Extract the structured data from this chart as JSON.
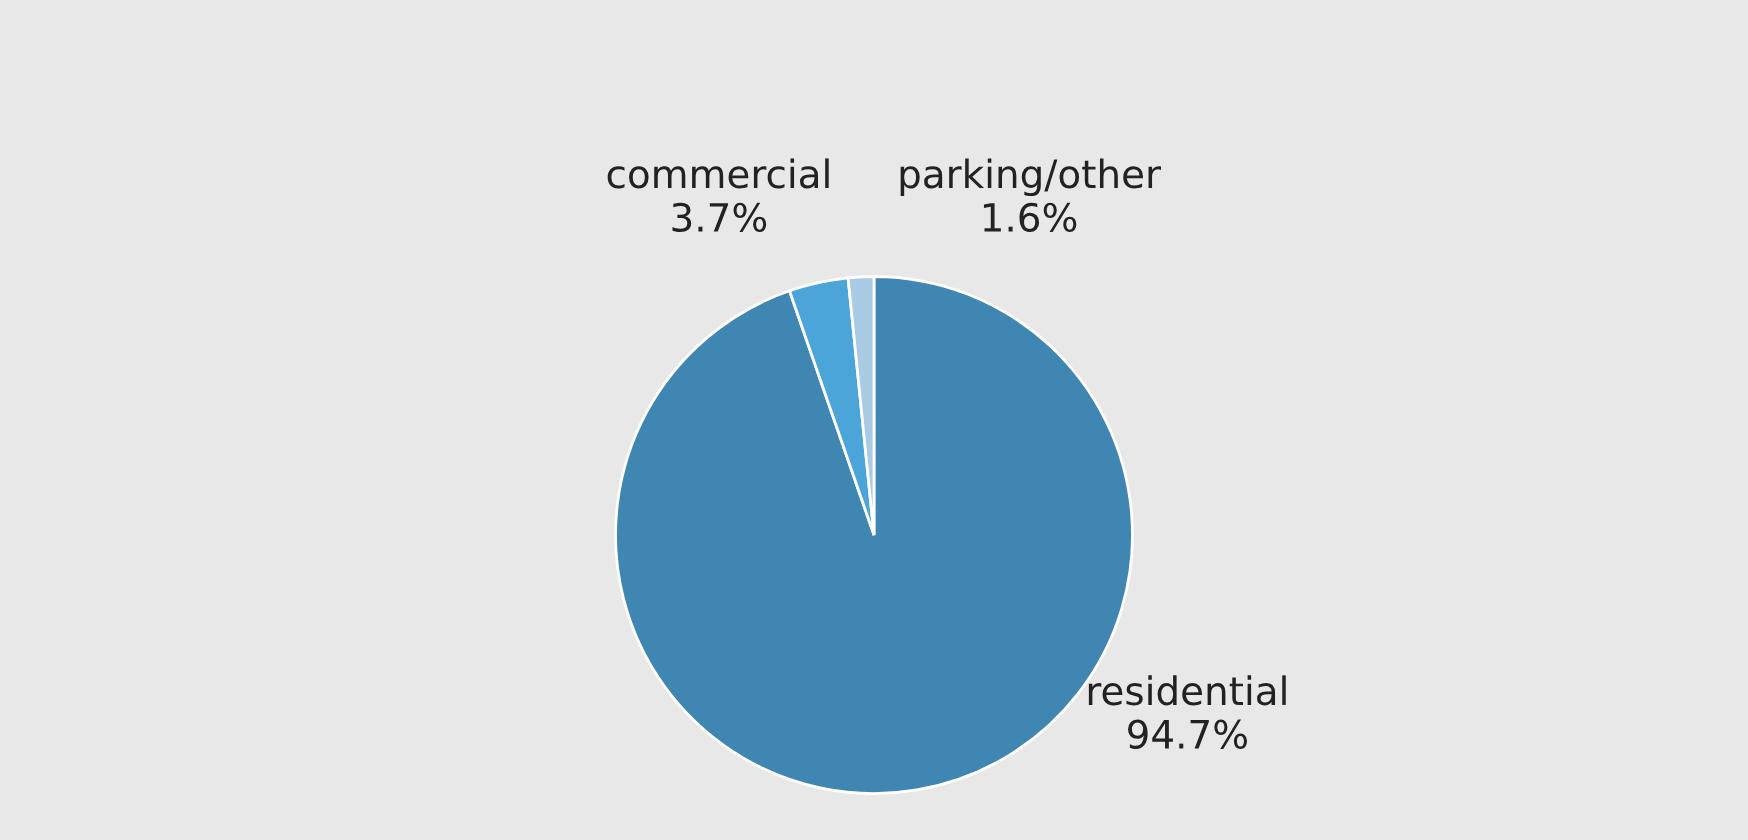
{
  "chart_data": {
    "type": "pie",
    "categories": [
      "residential",
      "commercial",
      "parking/other"
    ],
    "values": [
      94.7,
      3.7,
      1.6
    ],
    "colors": [
      "#3f86b2",
      "#4ba5d9",
      "#a9cbe6"
    ],
    "value_labels": [
      "94.7%",
      "3.7%",
      "1.6%"
    ]
  }
}
